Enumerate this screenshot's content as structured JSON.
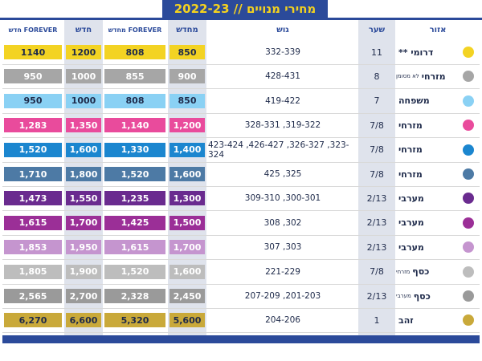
{
  "title": "מחירי מנויים // 2022-23",
  "headers": {
    "area": "אזור",
    "gate": "שער",
    "block": "גוש",
    "renew": "מחדש",
    "forever_renew": "FOREVER מחדש",
    "new": "חדש",
    "forever_new": "FOREVER חדש"
  },
  "rows": [
    {
      "area": "דרומי **",
      "area_small": "",
      "gate": "11",
      "block": "332-339",
      "renew": "850",
      "forever_renew": "808",
      "new": "1200",
      "forever_new": "1140",
      "color": "#f3d323"
    },
    {
      "area": "מזרחי",
      "area_small": "לא מסומן",
      "gate": "8",
      "block": "428-431",
      "renew": "900",
      "forever_renew": "855",
      "new": "1000",
      "forever_new": "950",
      "color": "#a6a6a6"
    },
    {
      "area": "משפחה",
      "area_small": "",
      "gate": "7",
      "block": "419-422",
      "renew": "850",
      "forever_renew": "808",
      "new": "1000",
      "forever_new": "950",
      "color": "#8ad1f4"
    },
    {
      "area": "מזרחי",
      "area_small": "",
      "gate": "7/8",
      "block": "328-331 ,319-322",
      "renew": "1,200",
      "forever_renew": "1,140",
      "new": "1,350",
      "forever_new": "1,283",
      "color": "#e94b9c"
    },
    {
      "area": "מזרחי",
      "area_small": "",
      "gate": "7/8",
      "block": "423-424 ,426-427 ,326-327 ,323-324",
      "renew": "1,400",
      "forever_renew": "1,330",
      "new": "1,600",
      "forever_new": "1,520",
      "color": "#1b86cf"
    },
    {
      "area": "מזרחי",
      "area_small": "",
      "gate": "7/8",
      "block": "425 ,325",
      "renew": "1,600",
      "forever_renew": "1,520",
      "new": "1,800",
      "forever_new": "1,710",
      "color": "#4d7aa5"
    },
    {
      "area": "מערבי",
      "area_small": "",
      "gate": "2/13",
      "block": "309-310 ,300-301",
      "renew": "1,300",
      "forever_renew": "1,235",
      "new": "1,550",
      "forever_new": "1,473",
      "color": "#6a2b8f"
    },
    {
      "area": "מערבי",
      "area_small": "",
      "gate": "2/13",
      "block": "308 ,302",
      "renew": "1,500",
      "forever_renew": "1,425",
      "new": "1,700",
      "forever_new": "1,615",
      "color": "#9b2f97"
    },
    {
      "area": "מערבי",
      "area_small": "",
      "gate": "2/13",
      "block": "307 ,303",
      "renew": "1,700",
      "forever_renew": "1,615",
      "new": "1,950",
      "forever_new": "1,853",
      "color": "#c595cf"
    },
    {
      "area": "כסף",
      "area_small": "מזרחי",
      "gate": "7/8",
      "block": "221-229",
      "renew": "1,600",
      "forever_renew": "1,520",
      "new": "1,900",
      "forever_new": "1,805",
      "color": "#bdbdbd"
    },
    {
      "area": "כסף",
      "area_small": "מערבי",
      "gate": "2/13",
      "block": "207-209 ,201-203",
      "renew": "2,450",
      "forever_renew": "2,328",
      "new": "2,700",
      "forever_new": "2,565",
      "color": "#9a9a9a"
    },
    {
      "area": "זהב",
      "area_small": "",
      "gate": "1",
      "block": "204-206",
      "renew": "5,600",
      "forever_renew": "5,320",
      "new": "6,600",
      "forever_new": "6,270",
      "color": "#c9a93a"
    }
  ],
  "colors": {
    "navy": "#2b4a9a",
    "yellow": "#f4d21f",
    "column_shade": "#e9ecf3"
  }
}
